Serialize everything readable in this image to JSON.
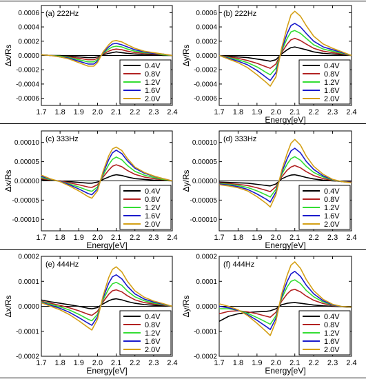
{
  "legend_labels": [
    "0.4V",
    "0.8V",
    "1.2V",
    "1.6V",
    "2.0V"
  ],
  "series_colors": [
    "#000000",
    "#b22222",
    "#33dd33",
    "#1a1acc",
    "#d4a017"
  ],
  "chart_data": [
    {
      "panel": "(a) 222Hz",
      "type": "line",
      "title": "(a) 222Hz",
      "xlabel": "",
      "ylabel": "Δx/Rs",
      "xlim": [
        1.7,
        2.4
      ],
      "ylim": [
        -0.0007,
        0.0007
      ],
      "xticks": [
        "1.7",
        "1.8",
        "1.9",
        "2.0",
        "2.1",
        "2.2",
        "2.3",
        "2.4"
      ],
      "yticks": [
        "-0.0006",
        "-0.0004",
        "-0.0002",
        "0.0000",
        "0.0002",
        "0.0004",
        "0.0006"
      ],
      "ytick_values": [
        -0.0006,
        -0.0004,
        -0.0002,
        0,
        0.0002,
        0.0004,
        0.0006
      ],
      "x": [
        1.7,
        1.75,
        1.8,
        1.85,
        1.9,
        1.95,
        1.98,
        2.0,
        2.03,
        2.06,
        2.08,
        2.1,
        2.13,
        2.16,
        2.2,
        2.25,
        2.3,
        2.35,
        2.4
      ],
      "series": [
        {
          "name": "0.4V",
          "values": [
            1e-05,
            0.0,
            0.0,
            -1e-05,
            -2e-05,
            -3e-05,
            -3e-05,
            -2e-05,
            1e-05,
            3e-05,
            4e-05,
            5e-05,
            4e-05,
            3e-05,
            2e-05,
            1e-05,
            1e-05,
            0.0,
            0.0
          ]
        },
        {
          "name": "0.8V",
          "values": [
            1e-05,
            0.0,
            -1e-05,
            -2e-05,
            -4e-05,
            -6e-05,
            -6e-05,
            -4e-05,
            2e-05,
            6e-05,
            8e-05,
            9e-05,
            8e-05,
            6e-05,
            4e-05,
            3e-05,
            2e-05,
            1e-05,
            0.0
          ]
        },
        {
          "name": "1.2V",
          "values": [
            1e-05,
            0.0,
            -1e-05,
            -3e-05,
            -6e-05,
            -9e-05,
            -9e-05,
            -6e-05,
            3e-05,
            9e-05,
            0.00012,
            0.00013,
            0.00012,
            9e-05,
            6e-05,
            4e-05,
            3e-05,
            1e-05,
            0.0
          ]
        },
        {
          "name": "1.6V",
          "values": [
            1e-05,
            0.0,
            -2e-05,
            -4e-05,
            -8e-05,
            -0.00012,
            -0.00012,
            -8e-05,
            4e-05,
            0.00012,
            0.00016,
            0.00017,
            0.00015,
            0.00012,
            8e-05,
            5e-05,
            3e-05,
            2e-05,
            0.0
          ]
        },
        {
          "name": "2.0V",
          "values": [
            1e-05,
            0.0,
            -2e-05,
            -5e-05,
            -0.0001,
            -0.00015,
            -0.00015,
            -0.0001,
            5e-05,
            0.00015,
            0.0002,
            0.00021,
            0.00019,
            0.00015,
            0.0001,
            6e-05,
            4e-05,
            2e-05,
            0.0
          ]
        }
      ]
    },
    {
      "panel": "(b) 222Hz",
      "type": "line",
      "title": "(b) 222Hz",
      "xlabel": "Energy[eV]",
      "ylabel": "Δy/Rs",
      "xlim": [
        1.7,
        2.4
      ],
      "ylim": [
        -0.0007,
        0.0007
      ],
      "xticks": [
        "1.7",
        "1.8",
        "1.9",
        "2.0",
        "2.1",
        "2.2",
        "2.3",
        "2.4"
      ],
      "yticks": [
        "-0.0006",
        "-0.0004",
        "-0.0002",
        "0.0000",
        "0.0002",
        "0.0004",
        "0.0006"
      ],
      "ytick_values": [
        -0.0006,
        -0.0004,
        -0.0002,
        0,
        0.0002,
        0.0004,
        0.0006
      ],
      "x": [
        1.7,
        1.75,
        1.8,
        1.85,
        1.9,
        1.95,
        1.97,
        2.0,
        2.03,
        2.06,
        2.08,
        2.1,
        2.13,
        2.16,
        2.2,
        2.25,
        2.3,
        2.35,
        2.4
      ],
      "series": [
        {
          "name": "0.4V",
          "values": [
            0.0,
            -1e-05,
            -2e-05,
            -3e-05,
            -5e-05,
            -7e-05,
            -8e-05,
            -6e-05,
            2e-05,
            8e-05,
            0.00011,
            0.00012,
            0.0001,
            8e-05,
            5e-05,
            3e-05,
            2e-05,
            1e-05,
            0.0
          ]
        },
        {
          "name": "0.8V",
          "values": [
            0.0,
            -2e-05,
            -4e-05,
            -7e-05,
            -0.00011,
            -0.00016,
            -0.00018,
            -0.00012,
            4e-05,
            0.00016,
            0.00022,
            0.00024,
            0.00021,
            0.00016,
            0.0001,
            6e-05,
            4e-05,
            2e-05,
            0.0
          ]
        },
        {
          "name": "1.2V",
          "values": [
            0.0,
            -3e-05,
            -6e-05,
            -0.0001,
            -0.00016,
            -0.00024,
            -0.00027,
            -0.00018,
            6e-05,
            0.00024,
            0.00033,
            0.00035,
            0.00031,
            0.00024,
            0.00015,
            9e-05,
            6e-05,
            3e-05,
            0.0
          ]
        },
        {
          "name": "1.6V",
          "values": [
            0.0,
            -4e-05,
            -8e-05,
            -0.00013,
            -0.00021,
            -0.00031,
            -0.00035,
            -0.00024,
            8e-05,
            0.00031,
            0.00042,
            0.00045,
            0.0004,
            0.00031,
            0.0002,
            0.00012,
            8e-05,
            4e-05,
            0.0
          ]
        },
        {
          "name": "2.0V",
          "values": [
            0.0,
            -5e-05,
            -0.0001,
            -0.00017,
            -0.00027,
            -0.00038,
            -0.00043,
            -0.0003,
            0.0001,
            0.0004,
            0.00057,
            0.00062,
            0.00055,
            0.00042,
            0.00027,
            0.00016,
            0.0001,
            5e-05,
            0.0
          ]
        }
      ]
    },
    {
      "panel": "(c) 333Hz",
      "type": "line",
      "title": "(c) 333Hz",
      "xlabel": "Energy[eV]",
      "ylabel": "Δx/Rs",
      "xlim": [
        1.7,
        2.4
      ],
      "ylim": [
        -0.00013,
        0.00013
      ],
      "xticks": [
        "1.7",
        "1.8",
        "1.9",
        "2.0",
        "2.1",
        "2.2",
        "2.3",
        "2.4"
      ],
      "yticks": [
        "-0.00010",
        "-0.00005",
        "0.00000",
        "0.00005",
        "0.00010"
      ],
      "ytick_values": [
        -0.0001,
        -5e-05,
        0,
        5e-05,
        0.0001
      ],
      "x": [
        1.7,
        1.75,
        1.8,
        1.85,
        1.9,
        1.95,
        1.97,
        2.0,
        2.03,
        2.06,
        2.08,
        2.1,
        2.13,
        2.16,
        2.2,
        2.25,
        2.3,
        2.35,
        2.4
      ],
      "series": [
        {
          "name": "0.4V",
          "values": [
            3e-06,
            1e-06,
            0.0,
            -2e-06,
            -4e-06,
            -6e-06,
            -6e-06,
            -3e-06,
            4e-06,
            1e-05,
            1.4e-05,
            1.6e-05,
            1.4e-05,
            1e-05,
            6e-06,
            4e-06,
            2e-06,
            1e-06,
            0.0
          ]
        },
        {
          "name": "0.8V",
          "values": [
            6e-06,
            2e-06,
            0.0,
            -5e-06,
            -1e-05,
            -1.6e-05,
            -1.7e-05,
            -1e-05,
            1e-05,
            2.8e-05,
            3.8e-05,
            4.2e-05,
            3.7e-05,
            2.7e-05,
            1.7e-05,
            1e-05,
            6e-06,
            3e-06,
            0.0
          ]
        },
        {
          "name": "1.2V",
          "values": [
            9e-06,
            3e-06,
            -1e-06,
            -8e-06,
            -1.6e-05,
            -2.5e-05,
            -2.7e-05,
            -1.6e-05,
            1.5e-05,
            4.2e-05,
            5.6e-05,
            6.2e-05,
            5.5e-05,
            4e-05,
            2.5e-05,
            1.5e-05,
            9e-06,
            4e-06,
            0.0
          ]
        },
        {
          "name": "1.6V",
          "values": [
            1.2e-05,
            4e-06,
            -1e-06,
            -1e-05,
            -2.1e-05,
            -3.3e-05,
            -3.6e-05,
            -2.1e-05,
            2e-05,
            5.5e-05,
            7.3e-05,
            8e-05,
            7.1e-05,
            5.2e-05,
            3.3e-05,
            2e-05,
            1.2e-05,
            6e-06,
            0.0
          ]
        },
        {
          "name": "2.0V",
          "values": [
            1.5e-05,
            5e-06,
            -2e-06,
            -1.3e-05,
            -2.6e-05,
            -4.1e-05,
            -4.5e-05,
            -2.6e-05,
            2.5e-05,
            6.5e-05,
            8.3e-05,
            8.8e-05,
            7.9e-05,
            5.8e-05,
            3.6e-05,
            2.2e-05,
            1.3e-05,
            6e-06,
            0.0
          ]
        }
      ]
    },
    {
      "panel": "(d) 333Hz",
      "type": "line",
      "title": "(d) 333Hz",
      "xlabel": "Energy[eV]",
      "ylabel": "Δy/Rs",
      "xlim": [
        1.7,
        2.4
      ],
      "ylim": [
        -0.00013,
        0.00013
      ],
      "xticks": [
        "1.7",
        "1.8",
        "1.9",
        "2.0",
        "2.1",
        "2.2",
        "2.3",
        "2.4"
      ],
      "yticks": [
        "-0.00010",
        "-0.00005",
        "0.00000",
        "0.00005",
        "0.00010"
      ],
      "ytick_values": [
        -0.0001,
        -5e-05,
        0,
        5e-05,
        0.0001
      ],
      "x": [
        1.7,
        1.75,
        1.8,
        1.85,
        1.9,
        1.95,
        1.97,
        2.0,
        2.03,
        2.06,
        2.08,
        2.1,
        2.13,
        2.16,
        2.2,
        2.25,
        2.3,
        2.35,
        2.4
      ],
      "series": [
        {
          "name": "0.4V",
          "values": [
            -3e-06,
            -4e-06,
            -5e-06,
            -6e-06,
            -9e-06,
            -1.2e-05,
            -1.3e-05,
            -8e-06,
            5e-06,
            1.2e-05,
            1.5e-05,
            1.6e-05,
            1.3e-05,
            9e-06,
            5e-06,
            2e-06,
            0.0,
            -1e-06,
            -2e-06
          ]
        },
        {
          "name": "0.8V",
          "values": [
            -5e-06,
            -7e-06,
            -9e-06,
            -1.2e-05,
            -1.8e-05,
            -2.5e-05,
            -2.8e-05,
            -1.5e-05,
            1e-05,
            2.8e-05,
            3.6e-05,
            4e-05,
            3.4e-05,
            2.4e-05,
            1.4e-05,
            6e-06,
            1e-06,
            -2e-06,
            -3e-06
          ]
        },
        {
          "name": "1.2V",
          "values": [
            -7e-06,
            -9e-06,
            -1.2e-05,
            -1.7e-05,
            -2.6e-05,
            -3.7e-05,
            -4.2e-05,
            -2.2e-05,
            1.6e-05,
            4.4e-05,
            5.8e-05,
            6.3e-05,
            5.4e-05,
            3.8e-05,
            2.2e-05,
            1e-05,
            2e-06,
            -2e-06,
            -4e-06
          ]
        },
        {
          "name": "1.6V",
          "values": [
            -8e-06,
            -1.1e-05,
            -1.5e-05,
            -2.2e-05,
            -3.4e-05,
            -4.8e-05,
            -5.5e-05,
            -2.9e-05,
            2.1e-05,
            5.8e-05,
            7.8e-05,
            8.5e-05,
            7.3e-05,
            5.1e-05,
            3e-05,
            1.3e-05,
            3e-06,
            -2e-06,
            -4e-06
          ]
        },
        {
          "name": "2.0V",
          "values": [
            -1e-05,
            -1.3e-05,
            -1.8e-05,
            -2.6e-05,
            -4.1e-05,
            -5.9e-05,
            -6.8e-05,
            -3.6e-05,
            2.6e-05,
            7.2e-05,
            9.8e-05,
            0.000108,
            9.3e-05,
            6.5e-05,
            3.8e-05,
            1.7e-05,
            4e-06,
            -2e-06,
            -5e-06
          ]
        }
      ]
    },
    {
      "panel": "(e) 444Hz",
      "type": "line",
      "title": "(e) 444Hz",
      "xlabel": "Energy[eV]",
      "ylabel": "Δx/Rs",
      "xlim": [
        1.7,
        2.4
      ],
      "ylim": [
        -0.0002,
        0.0002
      ],
      "xticks": [
        "1.7",
        "1.8",
        "1.9",
        "2.0",
        "2.1",
        "2.2",
        "2.3",
        "2.4"
      ],
      "yticks": [
        "-0.0002",
        "-0.0001",
        "0.0000",
        "0.0001",
        "0.0002"
      ],
      "ytick_values": [
        -0.0002,
        -0.0001,
        0,
        0.0001,
        0.0002
      ],
      "x": [
        1.7,
        1.75,
        1.8,
        1.85,
        1.9,
        1.95,
        1.97,
        2.0,
        2.03,
        2.06,
        2.08,
        2.1,
        2.13,
        2.16,
        2.2,
        2.25,
        2.3,
        2.35,
        2.4
      ],
      "series": [
        {
          "name": "0.4V",
          "values": [
            2.5e-05,
            1.8e-05,
            1.2e-05,
            6e-06,
            0.0,
            -8e-06,
            -1e-05,
            -5e-06,
            1e-05,
            2.2e-05,
            2.8e-05,
            3e-05,
            2.6e-05,
            1.9e-05,
            1.2e-05,
            7e-06,
            4e-06,
            2e-06,
            0.0
          ]
        },
        {
          "name": "0.8V",
          "values": [
            2e-05,
            1.2e-05,
            4e-06,
            -6e-06,
            -1.8e-05,
            -3.2e-05,
            -3.6e-05,
            -2e-05,
            1.8e-05,
            4.8e-05,
            6.2e-05,
            6.6e-05,
            5.8e-05,
            4.2e-05,
            2.6e-05,
            1.5e-05,
            9e-06,
            5e-06,
            0.0
          ]
        },
        {
          "name": "1.2V",
          "values": [
            1.8e-05,
            8e-06,
            -2e-06,
            -1.5e-05,
            -3.2e-05,
            -5.2e-05,
            -5.8e-05,
            -3.2e-05,
            2.6e-05,
            7e-05,
            9e-05,
            9.6e-05,
            8.4e-05,
            6.1e-05,
            3.8e-05,
            2.2e-05,
            1.3e-05,
            7e-06,
            0.0
          ]
        },
        {
          "name": "1.6V",
          "values": [
            1.6e-05,
            4e-06,
            -8e-06,
            -2.4e-05,
            -4.5e-05,
            -6.8e-05,
            -7.6e-05,
            -4.2e-05,
            3.4e-05,
            9.2e-05,
            0.000118,
            0.000126,
            0.00011,
            8e-05,
            5e-05,
            2.9e-05,
            1.7e-05,
            9e-06,
            0.0
          ]
        },
        {
          "name": "2.0V",
          "values": [
            1.4e-05,
            0.0,
            -1.4e-05,
            -3.3e-05,
            -5.8e-05,
            -8.5e-05,
            -9.5e-05,
            -5.2e-05,
            4.2e-05,
            0.000115,
            0.000148,
            0.000158,
            0.000138,
            0.0001,
            6.2e-05,
            3.6e-05,
            2.1e-05,
            1.1e-05,
            0.0
          ]
        }
      ]
    },
    {
      "panel": "(f) 444Hz",
      "type": "line",
      "title": "(f) 444Hz",
      "xlabel": "Energy[eV]",
      "ylabel": "Δy/Rs",
      "xlim": [
        1.7,
        2.4
      ],
      "ylim": [
        -0.0002,
        0.0002
      ],
      "xticks": [
        "1.7",
        "1.8",
        "1.9",
        "2.0",
        "2.1",
        "2.2",
        "2.3",
        "2.4"
      ],
      "yticks": [
        "-0.0002",
        "-0.0001",
        "0.0000",
        "0.0001",
        "0.0002"
      ],
      "ytick_values": [
        -0.0002,
        -0.0001,
        0,
        0.0001,
        0.0002
      ],
      "x": [
        1.7,
        1.75,
        1.8,
        1.85,
        1.9,
        1.95,
        1.97,
        2.0,
        2.03,
        2.06,
        2.08,
        2.1,
        2.13,
        2.16,
        2.2,
        2.25,
        2.3,
        2.35,
        2.4
      ],
      "series": [
        {
          "name": "0.4V",
          "values": [
            -6e-05,
            -4e-05,
            -3e-05,
            -2.5e-05,
            -2.2e-05,
            -2e-05,
            -1.8e-05,
            -1e-05,
            6e-06,
            1.2e-05,
            1.4e-05,
            1.5e-05,
            1.2e-05,
            9e-06,
            5e-06,
            2e-06,
            0.0,
            -2e-06,
            -4e-06
          ]
        },
        {
          "name": "0.8V",
          "values": [
            -3e-05,
            -2e-05,
            -1.8e-05,
            -2.2e-05,
            -3e-05,
            -4e-05,
            -4.4e-05,
            -2.4e-05,
            2e-05,
            5e-05,
            6.4e-05,
            6.8e-05,
            5.8e-05,
            4.1e-05,
            2.4e-05,
            1.1e-05,
            3e-06,
            -1e-06,
            -3e-06
          ]
        },
        {
          "name": "1.2V",
          "values": [
            -1e-05,
            -1e-05,
            -1.6e-05,
            -2.8e-05,
            -4.5e-05,
            -6.4e-05,
            -7.2e-05,
            -3.8e-05,
            3e-05,
            7.8e-05,
            0.0001,
            0.000106,
            9.1e-05,
            6.4e-05,
            3.8e-05,
            1.7e-05,
            5e-06,
            -1e-06,
            -3e-06
          ]
        },
        {
          "name": "1.6V",
          "values": [
            0.0,
            -6e-06,
            -1.6e-05,
            -3.3e-05,
            -5.6e-05,
            -8.2e-05,
            -9.3e-05,
            -4.8e-05,
            3.8e-05,
            0.0001,
            0.00013,
            0.00014,
            0.00012,
            8.5e-05,
            5e-05,
            2.2e-05,
            6e-06,
            -1e-06,
            -3e-06
          ]
        },
        {
          "name": "2.0V",
          "values": [
            1e-05,
            0.0,
            -1.4e-05,
            -3.7e-05,
            -6.8e-05,
            -0.000102,
            -0.000117,
            -6e-05,
            4.8e-05,
            0.000125,
            0.000165,
            0.000178,
            0.000152,
            0.000108,
            6.3e-05,
            2.8e-05,
            8e-06,
            -1e-06,
            -3e-06
          ]
        }
      ]
    }
  ]
}
